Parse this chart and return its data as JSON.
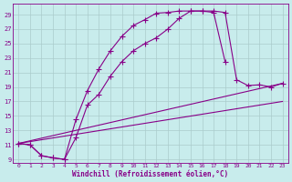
{
  "xlabel": "Windchill (Refroidissement éolien,°C)",
  "bg_color": "#c8ecec",
  "line_color": "#880088",
  "grid_color": "#aacccc",
  "xlim": [
    -0.5,
    23.5
  ],
  "ylim": [
    8.5,
    30.5
  ],
  "yticks": [
    9,
    11,
    13,
    15,
    17,
    19,
    21,
    23,
    25,
    27,
    29
  ],
  "xticks": [
    0,
    1,
    2,
    3,
    4,
    5,
    6,
    7,
    8,
    9,
    10,
    11,
    12,
    13,
    14,
    15,
    16,
    17,
    18,
    19,
    20,
    21,
    22,
    23
  ],
  "curve1_x": [
    0,
    1,
    2,
    3,
    4,
    5,
    6,
    7,
    8,
    9,
    10,
    11,
    12,
    13,
    14,
    15,
    16,
    17,
    18
  ],
  "curve1_y": [
    11.2,
    11.0,
    9.5,
    9.2,
    9.0,
    14.5,
    18.5,
    21.5,
    24.0,
    26.0,
    27.5,
    28.3,
    29.2,
    29.3,
    29.5,
    29.5,
    29.5,
    29.3,
    22.5
  ],
  "curve2_x": [
    0,
    1,
    2,
    3,
    4,
    5,
    6,
    7,
    8,
    9,
    10,
    11,
    12,
    13,
    14,
    15,
    16,
    17,
    18,
    19,
    20,
    21,
    22,
    23
  ],
  "curve2_y": [
    11.2,
    11.0,
    9.5,
    9.2,
    9.0,
    12.0,
    16.5,
    18.0,
    20.5,
    22.5,
    24.0,
    25.0,
    25.8,
    27.0,
    28.5,
    29.5,
    29.5,
    29.5,
    29.3,
    20.0,
    19.2,
    19.3,
    19.0,
    19.5
  ],
  "line3_x": [
    0,
    23
  ],
  "line3_y": [
    11.2,
    19.5
  ],
  "line4_x": [
    0,
    23
  ],
  "line4_y": [
    11.2,
    17.0
  ],
  "marker": "+",
  "markersize": 4.0,
  "linewidth": 0.8
}
